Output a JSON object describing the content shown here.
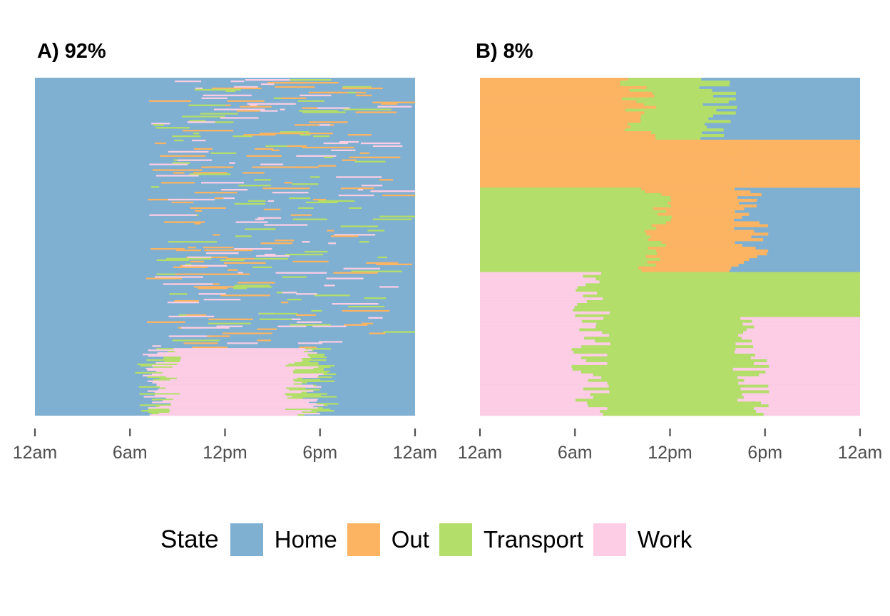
{
  "colors": {
    "Home": "#7fb0d1",
    "Out": "#fcb462",
    "Transport": "#b3de69",
    "Work": "#fccde5",
    "tick": "#4d4d4d"
  },
  "legend": {
    "title": "State",
    "items": [
      {
        "label": "Home",
        "color": "#7fb0d1"
      },
      {
        "label": "Out",
        "color": "#fcb462"
      },
      {
        "label": "Transport",
        "color": "#b3de69"
      },
      {
        "label": "Work",
        "color": "#fccde5"
      }
    ]
  },
  "chart_data": [
    {
      "type": "heatmap",
      "title": "A) 92%",
      "x_ticks": [
        "12am",
        "6am",
        "12pm",
        "6pm",
        "12am"
      ],
      "x_tick_hours": [
        0,
        6,
        12,
        18,
        24
      ],
      "xlim": [
        0,
        24
      ],
      "grid": false,
      "legend_position": "bottom",
      "states": [
        "Home",
        "Out",
        "Transport",
        "Work"
      ],
      "row_groups": [
        {
          "share_of_rows": 0.8,
          "hours": [
            0,
            7,
            9,
            17,
            20,
            24
          ],
          "states": [
            "Home",
            "Home",
            "Home",
            "Home",
            "Home"
          ],
          "scattered_states": [
            "Out",
            "Transport",
            "Work"
          ],
          "scatter_hours": [
            7,
            22
          ]
        },
        {
          "share_of_rows": 0.2,
          "hours": [
            0,
            7.5,
            8,
            17,
            18,
            24
          ],
          "states": [
            "Home",
            "Transport",
            "Work",
            "Transport",
            "Home"
          ]
        }
      ]
    },
    {
      "type": "heatmap",
      "title": "B) 8%",
      "x_ticks": [
        "12am",
        "6am",
        "12pm",
        "6pm",
        "12am"
      ],
      "x_tick_hours": [
        0,
        6,
        12,
        18,
        24
      ],
      "xlim": [
        0,
        24
      ],
      "grid": false,
      "legend_position": "bottom",
      "states": [
        "Home",
        "Out",
        "Transport",
        "Work"
      ],
      "row_groups": [
        {
          "share_of_rows": 0.18,
          "hours": [
            0,
            10,
            15,
            24
          ],
          "states": [
            "Out",
            "Transport",
            "Home"
          ]
        },
        {
          "share_of_rows": 0.14,
          "hours": [
            0,
            17,
            24
          ],
          "states": [
            "Out",
            "Out"
          ]
        },
        {
          "share_of_rows": 0.25,
          "hours": [
            0,
            11,
            17,
            24
          ],
          "states": [
            "Transport",
            "Out",
            "Home"
          ]
        },
        {
          "share_of_rows": 0.13,
          "hours": [
            0,
            7,
            24
          ],
          "states": [
            "Work",
            "Transport"
          ]
        },
        {
          "share_of_rows": 0.3,
          "hours": [
            0,
            7,
            17,
            24
          ],
          "states": [
            "Work",
            "Transport",
            "Work"
          ]
        }
      ]
    }
  ]
}
